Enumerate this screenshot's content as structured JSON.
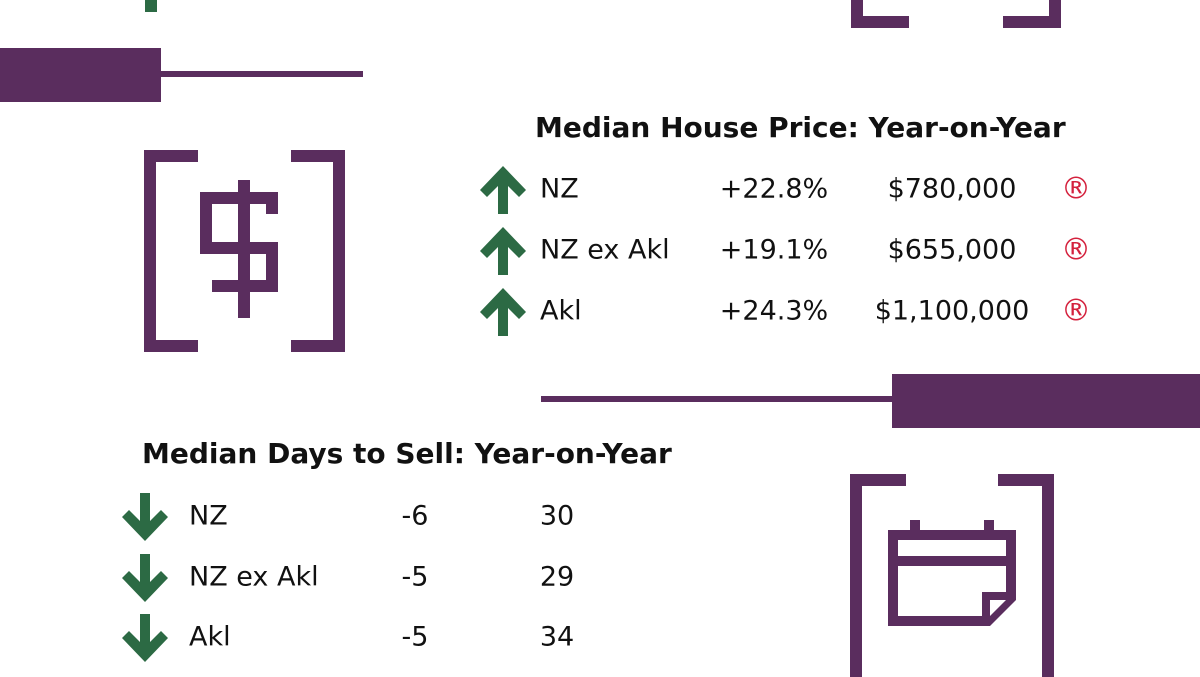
{
  "price_table": {
    "title": "Median House Price: Year-on-Year",
    "rows": [
      [
        "NZ",
        "+22.8%",
        "$780,000",
        "®"
      ],
      [
        "NZ ex Akl",
        "+19.1%",
        "$655,000",
        "®"
      ],
      [
        "Akl",
        "+24.3%",
        "$1,100,000",
        "®"
      ]
    ]
  },
  "days_table": {
    "title": "Median Days to Sell: Year-on-Year",
    "rows": [
      [
        "NZ",
        "-6",
        "30"
      ],
      [
        "NZ ex Akl",
        "-5",
        "29"
      ],
      [
        "Akl",
        "-5",
        "34"
      ]
    ]
  }
}
